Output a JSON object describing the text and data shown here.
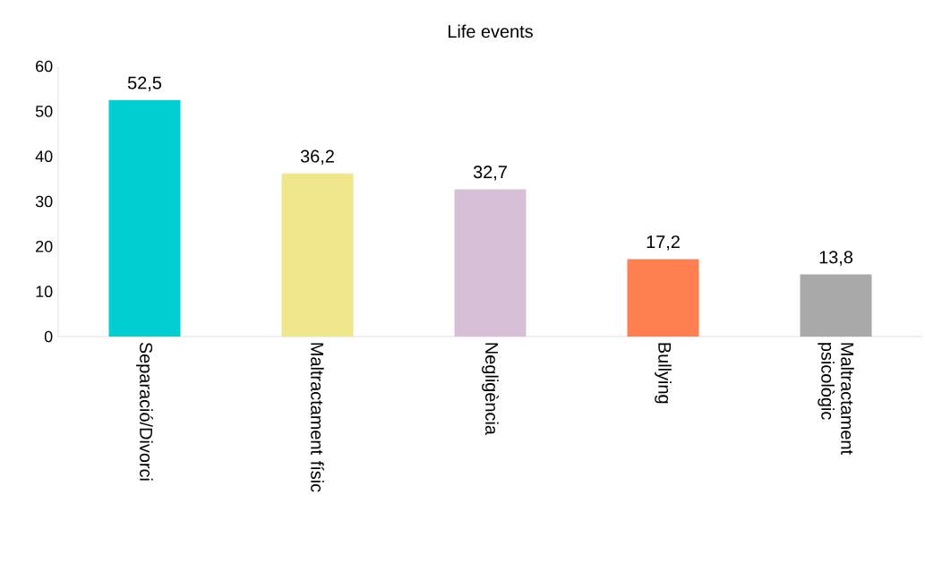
{
  "chart_data": {
    "type": "bar",
    "title": "Life events",
    "categories": [
      "Separació/Divorci",
      "Maltractament físic",
      "Negligència",
      "Bullying",
      "Maltractament psicològic"
    ],
    "values": [
      52.5,
      36.2,
      32.7,
      17.2,
      13.8
    ],
    "colors": [
      "#00ced1",
      "#f0e68c",
      "#d8bfd8",
      "#ff7f50",
      "#a9a9a9"
    ],
    "value_labels": [
      "52,5",
      "36,2",
      "32,7",
      "17,2",
      "13,8"
    ],
    "ylim": [
      0,
      60
    ],
    "yticks": [
      0,
      10,
      20,
      30,
      40,
      50,
      60
    ]
  }
}
